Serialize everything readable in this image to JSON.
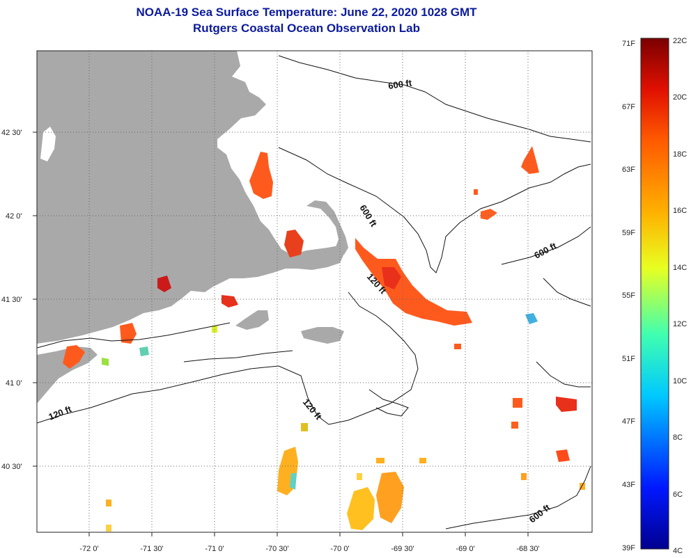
{
  "header": {
    "title": "NOAA-19 Sea Surface Temperature:  June 22, 2020 1028 GMT",
    "subtitle": "Rutgers Coastal Ocean Observation Lab"
  },
  "axes": {
    "lat_labels": [
      "42 30'",
      "42 0'",
      "41 30'",
      "41 0'",
      "40 30'"
    ],
    "lon_labels": [
      "-72 0'",
      "-71 30'",
      "-71 0'",
      "-70 30'",
      "-70 0'",
      "-69 30'",
      "-69 0'",
      "-68 30'"
    ]
  },
  "contour_labels": [
    "600 ft",
    "600 ft",
    "600 ft",
    "600 ft",
    "120 ft",
    "120 ft",
    "120 ft"
  ],
  "colorbar": {
    "fahrenheit": [
      "71F",
      "67F",
      "63F",
      "59F",
      "55F",
      "51F",
      "47F",
      "43F",
      "39F"
    ],
    "celsius": [
      "22C",
      "20C",
      "18C",
      "16C",
      "14C",
      "12C",
      "10C",
      "8C",
      "6C",
      "4C"
    ]
  },
  "colors": {
    "title": "#0b1a9c",
    "land": "#a9a9a9",
    "warm": "#ff5a1e",
    "hot": "#cc1a1a",
    "mild": "#ffb020"
  }
}
